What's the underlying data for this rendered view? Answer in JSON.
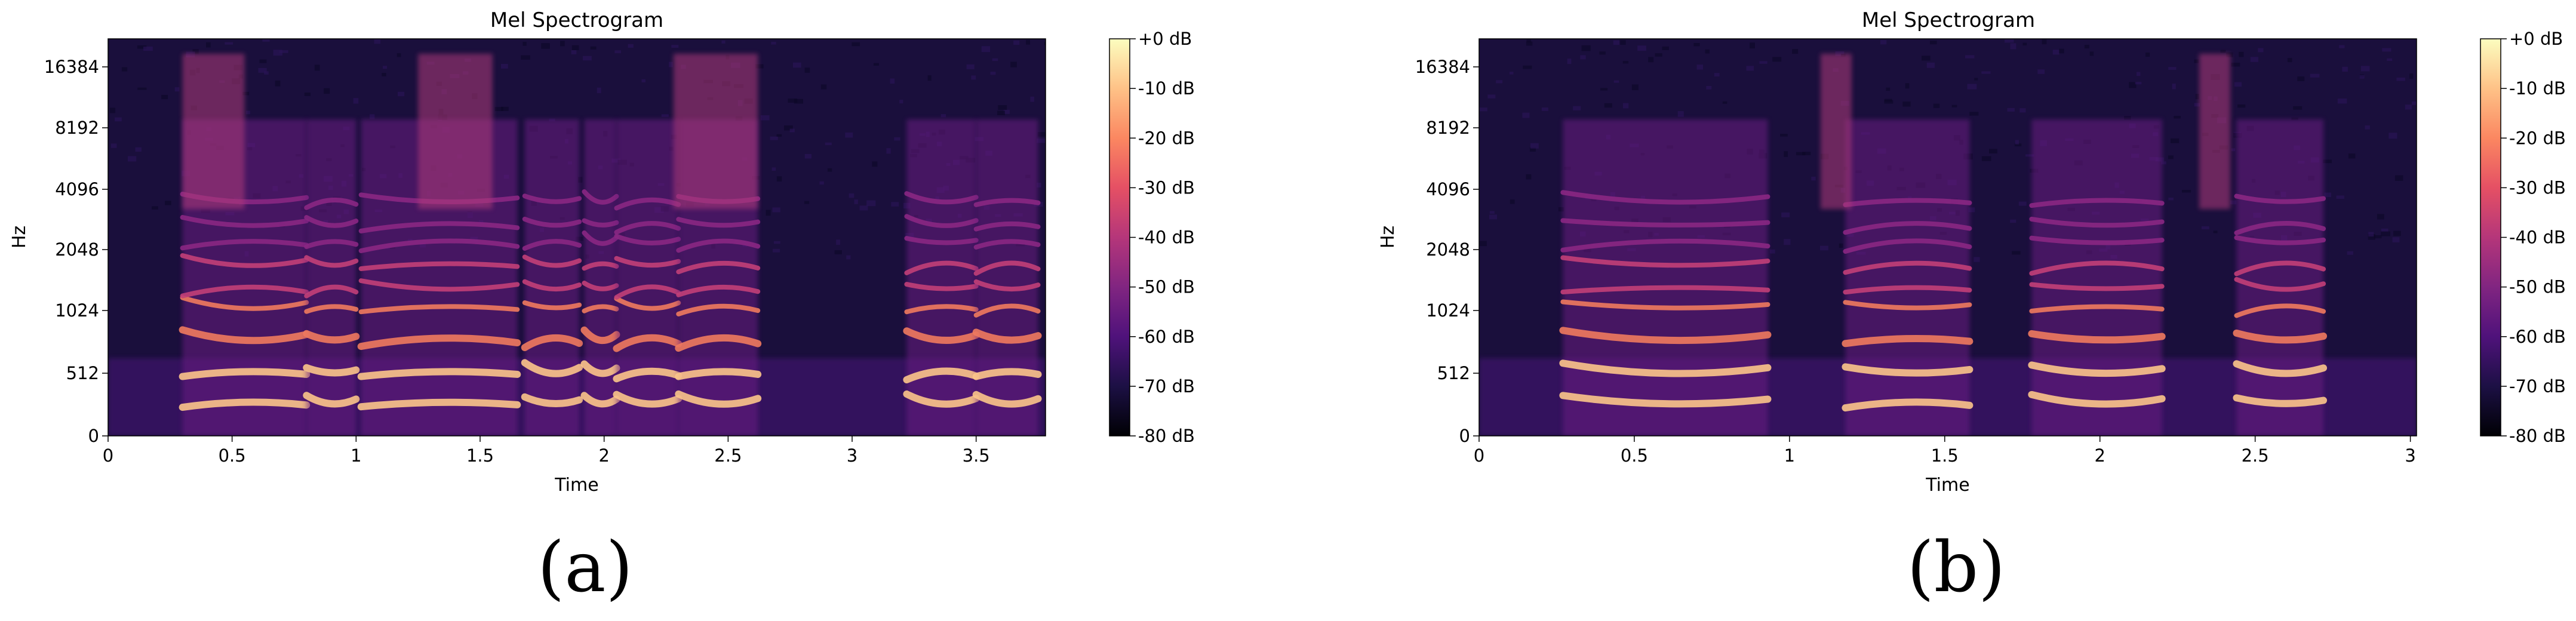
{
  "colors": {
    "magma_stops": [
      "#000004",
      "#1c1044",
      "#4f127b",
      "#812581",
      "#b5367a",
      "#e55064",
      "#fb8761",
      "#fec287",
      "#fcfdbf"
    ]
  },
  "chart_data": [
    {
      "type": "heatmap",
      "title": "Mel Spectrogram",
      "xlabel": "Time",
      "ylabel": "Hz",
      "xlim": [
        0,
        3.78
      ],
      "x_ticks": [
        0,
        0.5,
        1,
        1.5,
        2,
        2.5,
        3,
        3.5
      ],
      "x_tick_labels": [
        "0",
        "0.5",
        "1",
        "1.5",
        "2",
        "2.5",
        "3",
        "3.5"
      ],
      "y_scale": "mel",
      "y_ticks": [
        0,
        512,
        1024,
        2048,
        4096,
        8192,
        16384
      ],
      "y_tick_labels": [
        "0",
        "512",
        "1024",
        "2048",
        "4096",
        "8192",
        "16384"
      ],
      "colorbar": {
        "range": [
          -80,
          0
        ],
        "ticks": [
          0,
          -10,
          -20,
          -30,
          -40,
          -50,
          -60,
          -70,
          -80
        ],
        "tick_labels": [
          "+0 dB",
          "-10 dB",
          "-20 dB",
          "-30 dB",
          "-40 dB",
          "-50 dB",
          "-60 dB",
          "-70 dB",
          "-80 dB"
        ]
      },
      "voiced_segments_s": [
        [
          0.3,
          0.8
        ],
        [
          0.8,
          1.0
        ],
        [
          1.02,
          1.65
        ],
        [
          1.68,
          1.9
        ],
        [
          1.92,
          2.05
        ],
        [
          2.05,
          2.3
        ],
        [
          2.3,
          2.62
        ],
        [
          3.22,
          3.5
        ],
        [
          3.5,
          3.75
        ]
      ],
      "fricative_segments_s": [
        [
          0.3,
          0.55
        ],
        [
          1.25,
          1.55
        ],
        [
          2.28,
          2.62
        ]
      ],
      "caption": "(a)"
    },
    {
      "type": "heatmap",
      "title": "Mel Spectrogram",
      "xlabel": "Time",
      "ylabel": "Hz",
      "xlim": [
        0,
        3.02
      ],
      "x_ticks": [
        0,
        0.5,
        1,
        1.5,
        2,
        2.5,
        3
      ],
      "x_tick_labels": [
        "0",
        "0.5",
        "1",
        "1.5",
        "2",
        "2.5",
        "3"
      ],
      "y_scale": "mel",
      "y_ticks": [
        0,
        512,
        1024,
        2048,
        4096,
        8192,
        16384
      ],
      "y_tick_labels": [
        "0",
        "512",
        "1024",
        "2048",
        "4096",
        "8192",
        "16384"
      ],
      "colorbar": {
        "range": [
          -80,
          0
        ],
        "ticks": [
          0,
          -10,
          -20,
          -30,
          -40,
          -50,
          -60,
          -70,
          -80
        ],
        "tick_labels": [
          "+0 dB",
          "-10 dB",
          "-20 dB",
          "-30 dB",
          "-40 dB",
          "-50 dB",
          "-60 dB",
          "-70 dB",
          "-80 dB"
        ]
      },
      "voiced_segments_s": [
        [
          0.27,
          0.93
        ],
        [
          1.18,
          1.58
        ],
        [
          1.78,
          2.2
        ],
        [
          2.44,
          2.72
        ]
      ],
      "fricative_segments_s": [
        [
          1.1,
          1.2
        ],
        [
          2.32,
          2.42
        ]
      ],
      "caption": "(b)"
    }
  ]
}
